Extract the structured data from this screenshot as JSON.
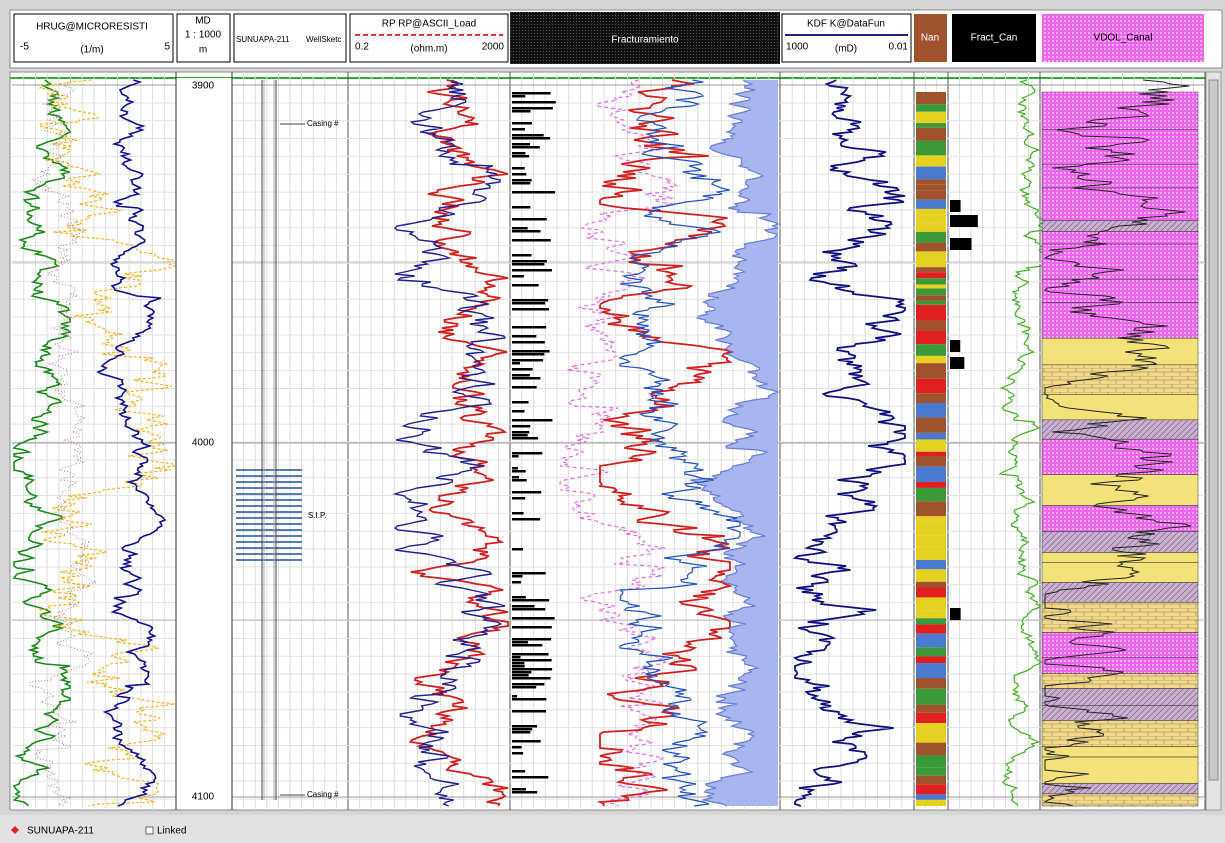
{
  "tracks": [
    {
      "title": "HRUG@MICRORESISTI",
      "min": "-5",
      "unit": "(1/m)",
      "max": "5"
    },
    {
      "title": "MD",
      "scale": "1 : 1000",
      "unit": "m"
    },
    {
      "title": "SUNUAPA-211",
      "subtitle": "WellSketc"
    },
    {
      "title": "RP RP@ASCII_Load",
      "min": "0.2",
      "unit": "(ohm.m)",
      "max": "2000"
    },
    {
      "title": "Fracturamiento"
    },
    {
      "title": "KDF K@DataFun",
      "min": "1000",
      "unit": "(mD)",
      "max": "0.01"
    },
    {
      "title": "Nan"
    },
    {
      "title": "Fract_Can"
    },
    {
      "title": "VDOL_Canal"
    }
  ],
  "depth_labels": [
    "3900",
    "4000",
    "4100"
  ],
  "annotations": [
    "Casing #",
    "Casing #",
    "S.I.P."
  ],
  "status_bar": {
    "well": "SUNUAPA-211",
    "linked": "Linked"
  }
}
